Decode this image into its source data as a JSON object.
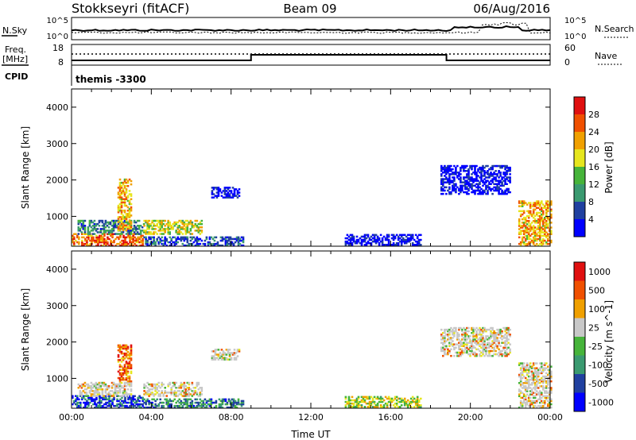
{
  "header": {
    "title": "Stokkseyri (fitACF)",
    "beam": "Beam 09",
    "date": "06/Aug/2016"
  },
  "nsky_panel": {
    "left_label": "N.Sky",
    "right_label": "N.Search",
    "left_ticks": [
      "10^5",
      "10^0"
    ],
    "right_ticks": [
      "10^5",
      "10^0"
    ]
  },
  "freq_panel": {
    "left_label_1": "Freq.",
    "left_label_2": "[MHz]",
    "right_label": "Nave",
    "left_ticks": [
      "18",
      "8"
    ],
    "right_ticks": [
      "60",
      "0"
    ],
    "cpid_label": "CPID",
    "cpid_value": "themis -3300"
  },
  "colors": {
    "scale": [
      "#0000ff",
      "#2040a0",
      "#3a9a70",
      "#46b43a",
      "#e6e61e",
      "#f0a000",
      "#f05000",
      "#e01010"
    ],
    "ground_scatter": "#c8c8c8"
  },
  "chart_data": [
    {
      "type": "heatmap",
      "panel": "power",
      "ylabel": "Slant Range [km]",
      "xlabel": "",
      "x_range_hours": [
        0,
        24
      ],
      "ylim": [
        180,
        4500
      ],
      "y_ticks": [
        "1000",
        "2000",
        "3000",
        "4000"
      ],
      "colorbar_label": "Power [dB]",
      "colorbar_ticks": [
        "4",
        "8",
        "12",
        "16",
        "20",
        "24",
        "28"
      ],
      "echo_regions": [
        {
          "t": [
            0.0,
            3.6
          ],
          "r": [
            180,
            500
          ],
          "level": 7
        },
        {
          "t": [
            0.3,
            3.6
          ],
          "r": [
            500,
            900
          ],
          "level": 3
        },
        {
          "t": [
            2.3,
            3.0
          ],
          "r": [
            600,
            2000
          ],
          "level": 6
        },
        {
          "t": [
            3.6,
            6.5
          ],
          "r": [
            500,
            900
          ],
          "level": 5
        },
        {
          "t": [
            3.6,
            8.6
          ],
          "r": [
            180,
            450
          ],
          "level": 2
        },
        {
          "t": [
            7.0,
            8.4
          ],
          "r": [
            1500,
            1800
          ],
          "level": 1
        },
        {
          "t": [
            13.7,
            17.5
          ],
          "r": [
            200,
            500
          ],
          "level": 1
        },
        {
          "t": [
            18.5,
            22.0
          ],
          "r": [
            1600,
            2400
          ],
          "level": 1
        },
        {
          "t": [
            22.4,
            24.0
          ],
          "r": [
            180,
            1400
          ],
          "level": 6
        }
      ]
    },
    {
      "type": "heatmap",
      "panel": "velocity",
      "ylabel": "Slant Range [km]",
      "xlabel": "Time UT",
      "x_range_hours": [
        0,
        24
      ],
      "x_ticks": [
        "00:00",
        "04:00",
        "08:00",
        "12:00",
        "16:00",
        "20:00",
        "00:00"
      ],
      "ylim": [
        180,
        4500
      ],
      "y_ticks": [
        "1000",
        "2000",
        "3000",
        "4000"
      ],
      "colorbar_label": "Velocity [m s^-1]",
      "colorbar_ticks": [
        "1000",
        "500",
        "100",
        "25",
        "-25",
        "-100",
        "-500",
        "-1000"
      ],
      "echo_regions": [
        {
          "t": [
            0.0,
            3.6
          ],
          "r": [
            180,
            500
          ],
          "level": 2
        },
        {
          "t": [
            0.3,
            3.0
          ],
          "r": [
            500,
            900
          ],
          "level": 8
        },
        {
          "t": [
            2.3,
            3.0
          ],
          "r": [
            900,
            1900
          ],
          "level": 7
        },
        {
          "t": [
            3.6,
            6.5
          ],
          "r": [
            500,
            900
          ],
          "level": 8
        },
        {
          "t": [
            3.6,
            8.6
          ],
          "r": [
            180,
            450
          ],
          "level": 3
        },
        {
          "t": [
            7.0,
            8.4
          ],
          "r": [
            1500,
            1800
          ],
          "level": 8
        },
        {
          "t": [
            13.7,
            17.5
          ],
          "r": [
            200,
            500
          ],
          "level": 5
        },
        {
          "t": [
            18.5,
            22.0
          ],
          "r": [
            1600,
            2400
          ],
          "level": 8
        },
        {
          "t": [
            22.4,
            24.0
          ],
          "r": [
            180,
            1400
          ],
          "level": 8
        }
      ]
    }
  ]
}
